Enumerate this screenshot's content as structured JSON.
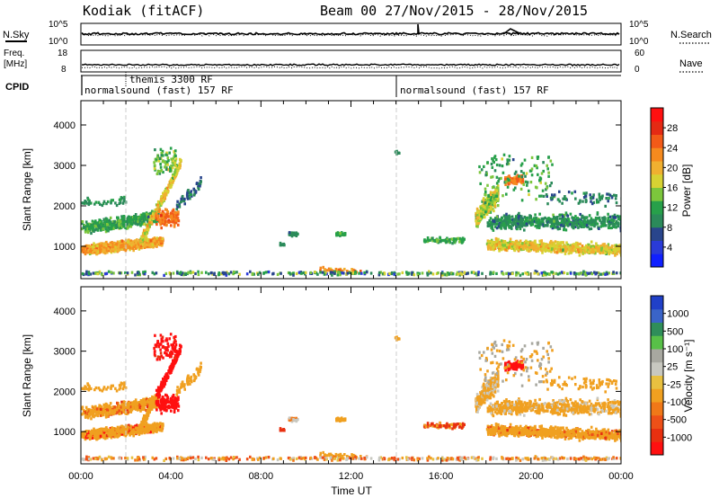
{
  "header": {
    "station": "Kodiak (fitACF)",
    "beam_info": "Beam 00  27/Nov/2015 - 28/Nov/2015"
  },
  "top_panels": {
    "nsky": {
      "label": "N.Sky",
      "tick_top": "10^5",
      "tick_bottom": "10^0"
    },
    "nsearch": {
      "label": "N.Search",
      "tick_top": "10^5",
      "tick_bottom": "10^0"
    },
    "freq": {
      "label_line1": "Freq.",
      "label_line2": "[MHz]",
      "tick_top": "18",
      "tick_bottom": "8"
    },
    "nave": {
      "label": "Nave",
      "tick_top": "60",
      "tick_bottom": "0"
    },
    "cpid": {
      "label": "CPID",
      "segments": [
        {
          "text": "themis 3300 RF",
          "start_hour": 2.0
        },
        {
          "text": "normalsound (fast) 157 RF",
          "start_hour": 0.0
        },
        {
          "text": "normalsound (fast) 157 RF",
          "start_hour": 14.0
        }
      ]
    }
  },
  "chart_data": [
    {
      "type": "heatmap",
      "parameter": "power",
      "ylabel": "Slant Range [km]",
      "xlabel": "",
      "ylim": [
        200,
        4600
      ],
      "xlim_hours": [
        0,
        24
      ],
      "y_ticks": [
        "1000",
        "2000",
        "3000",
        "4000"
      ],
      "colorbar": {
        "label": "Power [dB]",
        "ticks": [
          "4",
          "8",
          "12",
          "16",
          "20",
          "24",
          "28"
        ],
        "range": [
          0,
          32
        ],
        "colors": [
          "#1020ff",
          "#2a3bd8",
          "#29458c",
          "#2b8a5a",
          "#27a04a",
          "#7cc63c",
          "#d7d233",
          "#f0b030",
          "#f58a1e",
          "#f25a18",
          "#e42a14",
          "#ff1010"
        ]
      }
    },
    {
      "type": "heatmap",
      "parameter": "velocity",
      "ylabel": "Slant Range [km]",
      "xlabel": "Time UT",
      "ylim": [
        200,
        4600
      ],
      "xlim_hours": [
        0,
        24
      ],
      "y_ticks": [
        "1000",
        "2000",
        "3000",
        "4000"
      ],
      "x_ticks": [
        "00:00",
        "04:00",
        "08:00",
        "12:00",
        "16:00",
        "20:00",
        "00:00"
      ],
      "colorbar": {
        "label": "Velocity [m s⁻¹]",
        "ticks": [
          "1000",
          "500",
          "100",
          "25",
          "-25",
          "-100",
          "-500",
          "-1000"
        ],
        "colors": [
          "#2040c8",
          "#3a64c8",
          "#2f8e5a",
          "#58c048",
          "#a8a8a0",
          "#c8c8c0",
          "#e8c040",
          "#f0a020",
          "#f07818",
          "#ee5018",
          "#e83010",
          "#ff1010"
        ]
      }
    }
  ]
}
